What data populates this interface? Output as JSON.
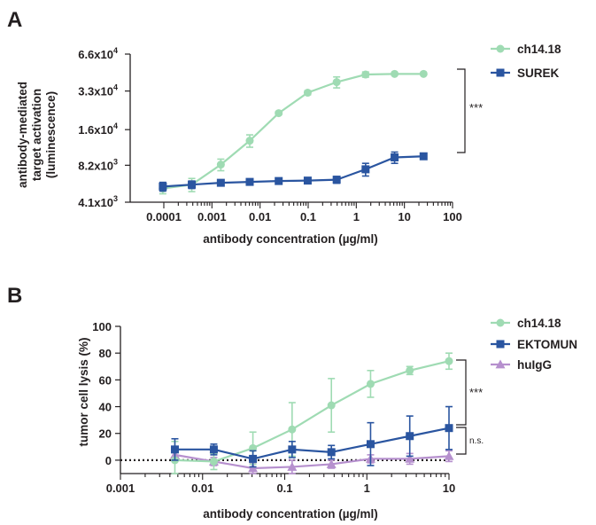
{
  "colors": {
    "green": "#9fdbb3",
    "blue": "#2a55a0",
    "purple": "#b690ce",
    "axis": "#231f20"
  },
  "chart_data": [
    {
      "panel": "A",
      "type": "line",
      "xscale": "log",
      "yscale": "log",
      "xlim": [
        2e-05,
        100
      ],
      "ylim": [
        4100,
        66000
      ],
      "xlabel": "antibody concentration (µg/ml)",
      "ylabel_lines": [
        "antibody-mediated",
        "target activation",
        "(luminescence)"
      ],
      "x_ticks": [
        0.0001,
        0.001,
        0.01,
        0.1,
        1,
        10,
        100
      ],
      "x_tick_labels": [
        "0.0001",
        "0.001",
        "0.01",
        "0.1",
        "1",
        "10",
        "100"
      ],
      "y_ticks": [
        4100,
        8200,
        16000,
        33000,
        66000
      ],
      "y_tick_labels": [
        {
          "base": "4.1x10",
          "exp": "3"
        },
        {
          "base": "8.2x10",
          "exp": "3"
        },
        {
          "base": "1.6x10",
          "exp": "4"
        },
        {
          "base": "3.3x10",
          "exp": "4"
        },
        {
          "base": "6.6x10",
          "exp": "4"
        }
      ],
      "significance": "***",
      "series": [
        {
          "name": "ch14.18",
          "marker": "circle",
          "color": "#9fdbb3",
          "x": [
            9.54e-05,
            0.000381,
            0.00153,
            0.0061,
            0.0244,
            0.0977,
            0.391,
            1.56,
            6.25,
            25
          ],
          "y": [
            5300,
            5700,
            8300,
            13000,
            21800,
            32000,
            39000,
            45000,
            45500,
            45500
          ],
          "err": [
            500,
            700,
            900,
            1500,
            600,
            1200,
            4000,
            2200,
            700,
            600
          ]
        },
        {
          "name": "SUREK",
          "marker": "square",
          "color": "#2a55a0",
          "x": [
            9.54e-05,
            0.000381,
            0.00153,
            0.0061,
            0.0244,
            0.0977,
            0.391,
            1.56,
            6.25,
            25
          ],
          "y": [
            5500,
            5700,
            5900,
            6000,
            6100,
            6150,
            6250,
            7600,
            9500,
            9700
          ],
          "err": [
            450,
            400,
            200,
            150,
            150,
            150,
            400,
            900,
            1000,
            300
          ]
        }
      ]
    },
    {
      "panel": "B",
      "type": "line",
      "xscale": "log",
      "xlim": [
        0.001,
        10
      ],
      "ylim": [
        -10,
        100
      ],
      "xlabel": "antibody concentration (µg/ml)",
      "ylabel": "tumor cell lysis (%)",
      "x_ticks": [
        0.001,
        0.01,
        0.1,
        1,
        10
      ],
      "x_tick_labels": [
        "0.001",
        "0.01",
        "0.1",
        "1",
        "10"
      ],
      "y_ticks": [
        0,
        20,
        40,
        60,
        80,
        100
      ],
      "y_tick_labels": [
        "0",
        "20",
        "40",
        "60",
        "80",
        "100"
      ],
      "reference_line_y": 0,
      "significance_upper": "***",
      "significance_lower": "n.s.",
      "series": [
        {
          "name": "ch14.18",
          "marker": "circle",
          "color": "#9fdbb3",
          "x": [
            0.0046,
            0.0137,
            0.041,
            0.123,
            0.37,
            1.11,
            3.33,
            10
          ],
          "y": [
            0,
            -1,
            9,
            23,
            41,
            57,
            67,
            74
          ],
          "err": [
            14,
            6,
            12,
            20,
            20,
            10,
            3,
            6
          ]
        },
        {
          "name": "EKTOMUN",
          "marker": "square",
          "color": "#2a55a0",
          "x": [
            0.0046,
            0.0137,
            0.041,
            0.123,
            0.37,
            1.11,
            3.33,
            10
          ],
          "y": [
            8,
            8,
            1,
            8,
            6,
            12,
            18,
            24
          ],
          "err": [
            8,
            4,
            6,
            6,
            5,
            16,
            15,
            16
          ]
        },
        {
          "name": "huIgG",
          "marker": "triangle",
          "color": "#b690ce",
          "x": [
            0.0046,
            0.0137,
            0.041,
            0.123,
            0.37,
            1.11,
            3.33,
            10
          ],
          "y": [
            4,
            -1,
            -6,
            -5,
            -3,
            1,
            1,
            3
          ],
          "err": [
            5,
            3,
            4,
            5,
            3,
            3,
            4,
            4
          ]
        }
      ]
    }
  ]
}
